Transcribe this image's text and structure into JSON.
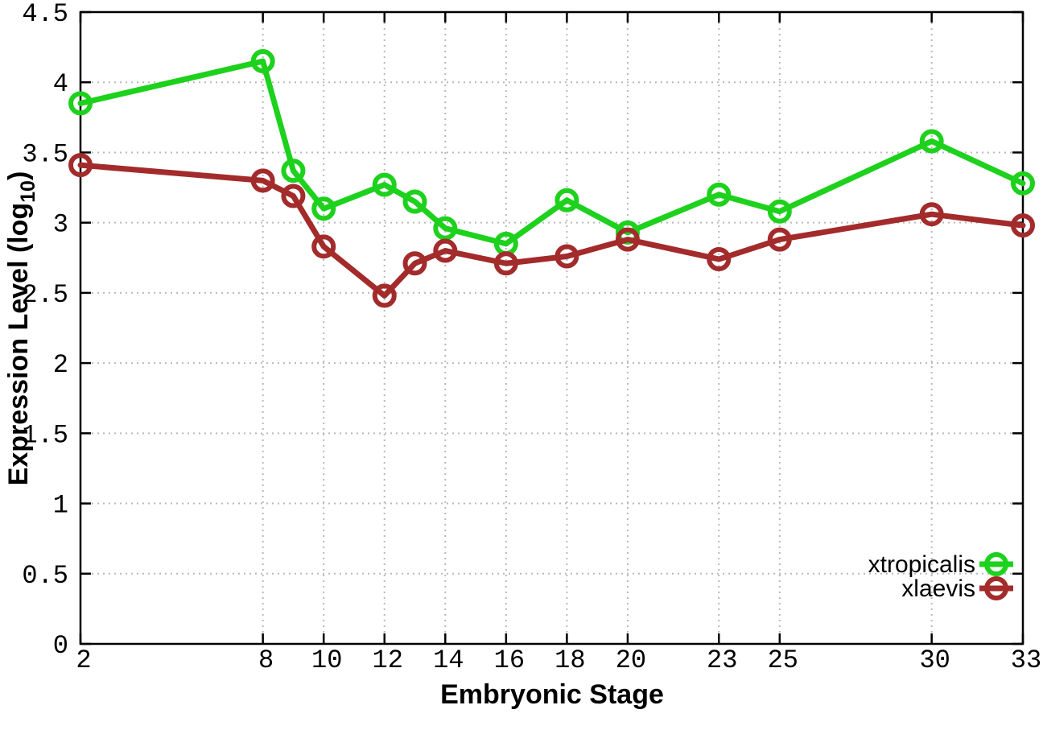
{
  "chart_data": {
    "type": "line",
    "title": "",
    "xlabel": "Embryonic Stage",
    "ylabel": {
      "prefix": "Expression Level (log",
      "sub": "10",
      "suffix": ")"
    },
    "x": [
      2,
      8,
      9,
      10,
      12,
      13,
      14,
      16,
      18,
      20,
      23,
      25,
      30,
      33
    ],
    "series": [
      {
        "name": "xtropicalis",
        "color": "#1dd11d",
        "values": [
          3.85,
          4.15,
          3.37,
          3.1,
          3.27,
          3.15,
          2.96,
          2.85,
          3.16,
          2.93,
          3.2,
          3.08,
          3.58,
          3.28
        ]
      },
      {
        "name": "xlaevis",
        "color": "#a32b2b",
        "values": [
          3.41,
          3.3,
          3.19,
          2.83,
          2.48,
          2.71,
          2.8,
          2.71,
          2.76,
          2.88,
          2.74,
          2.88,
          3.06,
          2.98
        ]
      }
    ],
    "xlim": [
      2,
      33
    ],
    "ylim": [
      0,
      4.5
    ],
    "xticks": [
      2,
      8,
      10,
      12,
      14,
      16,
      18,
      20,
      23,
      25,
      30,
      33
    ],
    "xtick_labels": [
      "2",
      "8",
      "10",
      "12",
      "14",
      "16",
      "18",
      "20",
      "23",
      "25",
      "30",
      "33"
    ],
    "yticks": [
      0,
      0.5,
      1,
      1.5,
      2,
      2.5,
      3,
      3.5,
      4,
      4.5
    ],
    "ytick_labels": [
      "0",
      "0.5",
      "1",
      "1.5",
      "2",
      "2.5",
      "3",
      "3.5",
      "4",
      "4.5"
    ],
    "grid": true,
    "legend_position": "bottom-right",
    "background_color": "#ffffff",
    "axis_color": "#000000",
    "grid_color": "#b9b9b9"
  }
}
